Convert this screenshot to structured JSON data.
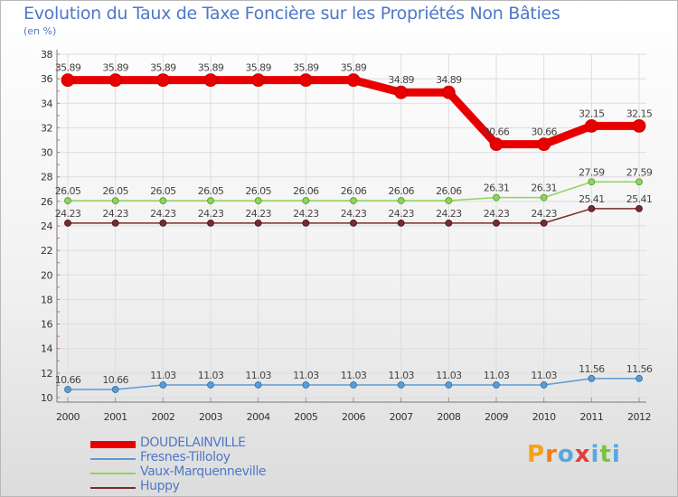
{
  "title": "Evolution du Taux de Taxe Foncière sur les Propriétés Non Bâties",
  "subtitle": "(en %)",
  "logo": {
    "letters": [
      "P",
      "r",
      "o",
      "x",
      "i",
      "t",
      "i"
    ],
    "colors": [
      "#f7a11a",
      "#f07d1c",
      "#55a9e0",
      "#e33c3c",
      "#55a9e0",
      "#7cc242",
      "#55a9e0"
    ]
  },
  "chart_data": {
    "type": "line",
    "x": [
      "2000",
      "2001",
      "2002",
      "2003",
      "2004",
      "2005",
      "2006",
      "2007",
      "2008",
      "2009",
      "2010",
      "2011",
      "2012"
    ],
    "ylim": [
      10,
      38
    ],
    "yticks": [
      "10",
      "12",
      "14",
      "16",
      "18",
      "20",
      "22",
      "24",
      "26",
      "28",
      "30",
      "32",
      "34",
      "36",
      "38"
    ],
    "grid": true,
    "series": [
      {
        "name": "DOUDELAINVILLE",
        "color": "#e80000",
        "values": [
          35.89,
          35.89,
          35.89,
          35.89,
          35.89,
          35.89,
          35.89,
          34.89,
          34.89,
          30.66,
          30.66,
          32.15,
          32.15
        ],
        "labels": [
          "35.89",
          "35.89",
          "35.89",
          "35.89",
          "35.89",
          "35.89",
          "35.89",
          "34.89",
          "34.89",
          "30.66",
          "30.66",
          "32.15",
          "32.15"
        ]
      },
      {
        "name": "Fresnes-Tilloloy",
        "color": "#5b9bd5",
        "values": [
          10.66,
          10.66,
          11.03,
          11.03,
          11.03,
          11.03,
          11.03,
          11.03,
          11.03,
          11.03,
          11.03,
          11.56,
          11.56
        ],
        "labels": [
          "10.66",
          "10.66",
          "11.03",
          "11.03",
          "11.03",
          "11.03",
          "11.03",
          "11.03",
          "11.03",
          "11.03",
          "11.03",
          "11.56",
          "11.56"
        ]
      },
      {
        "name": "Vaux-Marquenneville",
        "color": "#8fd45a",
        "values": [
          26.05,
          26.05,
          26.05,
          26.05,
          26.05,
          26.06,
          26.06,
          26.06,
          26.06,
          26.31,
          26.31,
          27.59,
          27.59
        ],
        "labels": [
          "26.05",
          "26.05",
          "26.05",
          "26.05",
          "26.05",
          "26.06",
          "26.06",
          "26.06",
          "26.06",
          "26.31",
          "26.31",
          "27.59",
          "27.59"
        ]
      },
      {
        "name": "Huppy",
        "color": "#7a2b2b",
        "values": [
          24.23,
          24.23,
          24.23,
          24.23,
          24.23,
          24.23,
          24.23,
          24.23,
          24.23,
          24.23,
          24.23,
          25.41,
          25.41
        ],
        "labels": [
          "24.23",
          "24.23",
          "24.23",
          "24.23",
          "24.23",
          "24.23",
          "24.23",
          "24.23",
          "24.23",
          "24.23",
          "24.23",
          "25.41",
          "25.41"
        ]
      }
    ]
  }
}
